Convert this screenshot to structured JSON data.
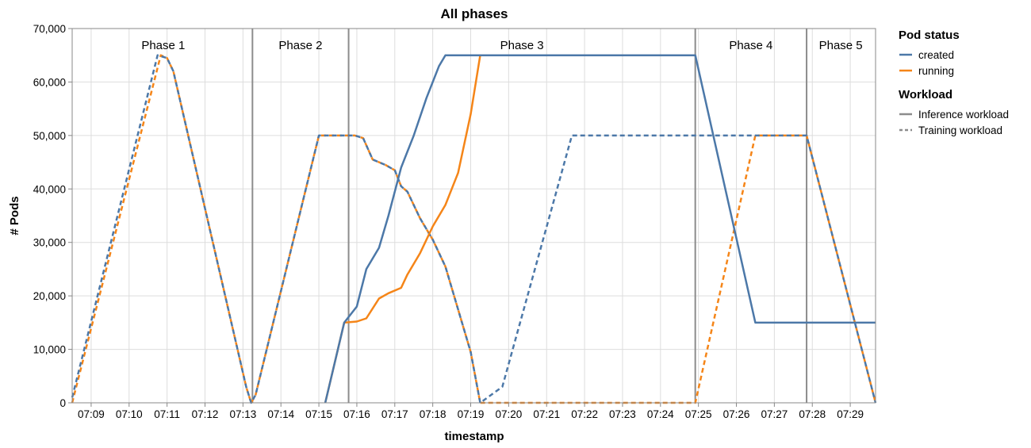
{
  "chart_data": {
    "type": "line",
    "title": "All phases",
    "xlabel": "timestamp",
    "ylabel": "# Pods",
    "xlim": [
      "07:08:30",
      "07:29:40"
    ],
    "ylim": [
      0,
      70000
    ],
    "grid": true,
    "x_ticks": [
      "07:09",
      "07:10",
      "07:11",
      "07:12",
      "07:13",
      "07:14",
      "07:15",
      "07:16",
      "07:17",
      "07:18",
      "07:19",
      "07:20",
      "07:21",
      "07:22",
      "07:23",
      "07:24",
      "07:25",
      "07:26",
      "07:27",
      "07:28",
      "07:29"
    ],
    "y_ticks": [
      0,
      10000,
      20000,
      30000,
      40000,
      50000,
      60000,
      70000
    ],
    "y_tick_labels": [
      "0",
      "10,000",
      "20,000",
      "30,000",
      "40,000",
      "50,000",
      "60,000",
      "70,000"
    ],
    "phase_boundaries": [
      "07:13:15",
      "07:15:47",
      "07:24:55",
      "07:27:51"
    ],
    "phases": [
      {
        "label": "Phase 1",
        "center": "07:10:54"
      },
      {
        "label": "Phase 2",
        "center": "07:14:31"
      },
      {
        "label": "Phase 3",
        "center": "07:20:21"
      },
      {
        "label": "Phase 4",
        "center": "07:26:23"
      },
      {
        "label": "Phase 5",
        "center": "07:28:45"
      }
    ],
    "legend": {
      "placement": "right",
      "groups": [
        {
          "title": "Pod status",
          "entries": [
            {
              "label": "created",
              "color": "#4c78a8",
              "style": "solid"
            },
            {
              "label": "running",
              "color": "#f58518",
              "style": "solid"
            }
          ]
        },
        {
          "title": "Workload",
          "entries": [
            {
              "label": "Inference workload",
              "color": "#8c8c8c",
              "style": "solid"
            },
            {
              "label": "Training workload",
              "color": "#8c8c8c",
              "style": "dashed"
            }
          ]
        }
      ]
    },
    "series": [
      {
        "status": "running",
        "workload": "Training workload",
        "color": "#f58518",
        "dash": true,
        "points": [
          [
            "07:08:30",
            0
          ],
          [
            "07:10:50",
            65000
          ],
          [
            "07:11:00",
            64500
          ],
          [
            "07:11:10",
            62000
          ],
          [
            "07:13:05",
            3000
          ],
          [
            "07:13:13",
            0
          ],
          [
            "07:13:20",
            1500
          ],
          [
            "07:15:00",
            50000
          ],
          [
            "07:15:57",
            50000
          ],
          [
            "07:16:10",
            49500
          ],
          [
            "07:16:25",
            45500
          ],
          [
            "07:16:45",
            44500
          ],
          [
            "07:17:00",
            43500
          ],
          [
            "07:17:10",
            40500
          ],
          [
            "07:17:20",
            39500
          ],
          [
            "07:17:40",
            34500
          ],
          [
            "07:18:00",
            30500
          ],
          [
            "07:18:20",
            25500
          ],
          [
            "07:19:00",
            9500
          ],
          [
            "07:19:15",
            0
          ],
          [
            "07:24:55",
            0
          ],
          [
            "07:26:30",
            50000
          ],
          [
            "07:27:51",
            50000
          ],
          [
            "07:29:40",
            0
          ]
        ]
      },
      {
        "status": "created",
        "workload": "Training workload",
        "color": "#4c78a8",
        "dash": true,
        "points": [
          [
            "07:08:30",
            1000
          ],
          [
            "07:10:45",
            65000
          ],
          [
            "07:11:00",
            64500
          ],
          [
            "07:11:10",
            62000
          ],
          [
            "07:13:05",
            3000
          ],
          [
            "07:13:13",
            0
          ],
          [
            "07:13:20",
            1500
          ],
          [
            "07:15:00",
            50000
          ],
          [
            "07:15:57",
            50000
          ],
          [
            "07:16:10",
            49500
          ],
          [
            "07:16:25",
            45500
          ],
          [
            "07:16:45",
            44500
          ],
          [
            "07:17:00",
            43500
          ],
          [
            "07:17:10",
            40500
          ],
          [
            "07:17:20",
            39500
          ],
          [
            "07:17:40",
            34500
          ],
          [
            "07:18:00",
            30500
          ],
          [
            "07:18:20",
            25500
          ],
          [
            "07:19:00",
            9500
          ],
          [
            "07:19:15",
            0
          ],
          [
            "07:19:50",
            3000
          ],
          [
            "07:21:40",
            50000
          ],
          [
            "07:27:51",
            50000
          ],
          [
            "07:29:40",
            0
          ]
        ]
      },
      {
        "status": "running",
        "workload": "Inference workload",
        "color": "#f58518",
        "dash": false,
        "points": [
          [
            "07:15:10",
            0
          ],
          [
            "07:15:40",
            15000
          ],
          [
            "07:16:00",
            15200
          ],
          [
            "07:16:15",
            15800
          ],
          [
            "07:16:35",
            19500
          ],
          [
            "07:16:50",
            20500
          ],
          [
            "07:17:10",
            21500
          ],
          [
            "07:17:20",
            24000
          ],
          [
            "07:17:40",
            28000
          ],
          [
            "07:18:00",
            33000
          ],
          [
            "07:18:20",
            37000
          ],
          [
            "07:18:40",
            43000
          ],
          [
            "07:19:00",
            54000
          ],
          [
            "07:19:15",
            65000
          ],
          [
            "07:24:55",
            65000
          ]
        ]
      },
      {
        "status": "created",
        "workload": "Inference workload",
        "color": "#4c78a8",
        "dash": false,
        "points": [
          [
            "07:15:10",
            0
          ],
          [
            "07:15:40",
            15000
          ],
          [
            "07:16:00",
            18000
          ],
          [
            "07:16:15",
            25000
          ],
          [
            "07:16:35",
            29000
          ],
          [
            "07:16:50",
            35000
          ],
          [
            "07:17:10",
            44000
          ],
          [
            "07:17:30",
            50000
          ],
          [
            "07:17:50",
            57000
          ],
          [
            "07:18:10",
            63000
          ],
          [
            "07:18:20",
            65000
          ],
          [
            "07:24:55",
            65000
          ],
          [
            "07:26:30",
            15000
          ],
          [
            "07:29:40",
            15000
          ]
        ]
      }
    ]
  }
}
